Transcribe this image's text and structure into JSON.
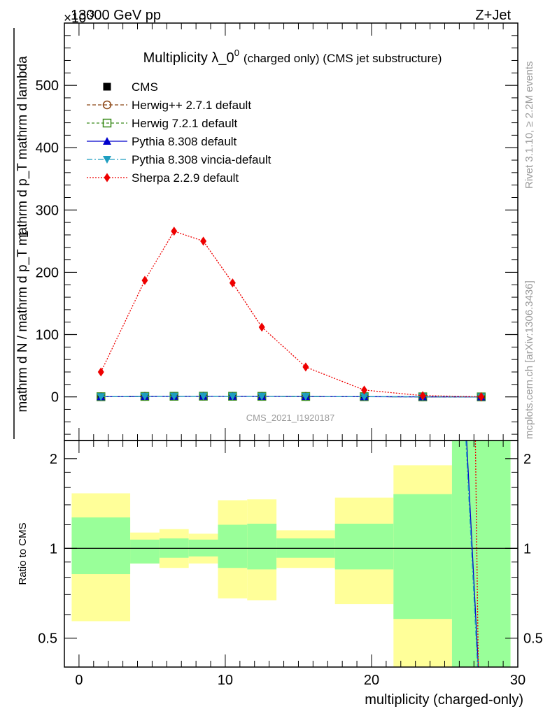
{
  "header": {
    "left": "13000 GeV pp",
    "right": "Z+Jet",
    "exponent": "×10",
    "exponent_power": "-3"
  },
  "side_labels": {
    "top": "Rivet 3.1.10, ≥ 2.2M events",
    "bottom": "mcplots.cern.ch [arXiv:1306.3436]"
  },
  "watermark": "CMS_2021_I1920187",
  "colors": {
    "cms": "#000000",
    "herwigpp": "#8b4513",
    "herwig7": "#3a8a1a",
    "pythia": "#0000cc",
    "vincia": "#1e9ec0",
    "sherpa": "#ee0000",
    "band_inner": "#99ff99",
    "band_outer": "#ffff99"
  },
  "chart_data": [
    {
      "type": "line",
      "title": "Multiplicity λ_0",
      "title_sup": "0",
      "title_suffix": "(charged only) (CMS jet substructure)",
      "ylabel_numerator": "1",
      "ylabel_numerator2": "mathrm dN",
      "ylabel_denominator": "mathrm d N / mathrm d p_T mathrm d p_T mathrm d lambda",
      "ylabel_denominator_display": "mathrm d N / mathrm d p",
      "ylabel_denominator_tail": "mathrm d lambda",
      "ylabel_sub": "T",
      "ylabel_mid": "mathrm d p",
      "ylabel_mid2": "mathrm d p",
      "ylim": [
        -70,
        600
      ],
      "xlim": [
        -1,
        30
      ],
      "yticks": [
        0,
        100,
        200,
        300,
        400,
        500
      ],
      "legend_placement": "top-left",
      "series": [
        {
          "name": "CMS",
          "key": "cms",
          "marker": "square-filled",
          "dash": "none",
          "x": [
            1.5,
            4.5,
            6.5,
            8.5,
            10.5,
            12.5,
            15.5,
            19.5,
            23.5,
            27.5
          ],
          "y": [
            0.3,
            0.8,
            1.0,
            1.1,
            1.0,
            0.9,
            0.7,
            0.35,
            0.1,
            0.02
          ]
        },
        {
          "name": "Herwig++ 2.7.1 default",
          "key": "herwigpp",
          "marker": "circle-open",
          "dash": "5,3",
          "x": [
            1.5,
            4.5,
            6.5,
            8.5,
            10.5,
            12.5,
            15.5,
            19.5,
            23.5,
            27.5
          ],
          "y": [
            0.3,
            0.8,
            1.0,
            1.1,
            1.0,
            0.9,
            0.7,
            0.35,
            0.1,
            0.02
          ]
        },
        {
          "name": "Herwig 7.2.1 default",
          "key": "herwig7",
          "marker": "square-open",
          "dash": "4,3",
          "x": [
            1.5,
            4.5,
            6.5,
            8.5,
            10.5,
            12.5,
            15.5,
            19.5,
            23.5,
            27.5
          ],
          "y": [
            0.3,
            0.8,
            1.0,
            1.1,
            1.0,
            0.9,
            0.7,
            0.35,
            0.1,
            0.02
          ]
        },
        {
          "name": "Pythia 8.308 default",
          "key": "pythia",
          "marker": "triangle-up",
          "dash": "none",
          "x": [
            1.5,
            4.5,
            6.5,
            8.5,
            10.5,
            12.5,
            15.5,
            19.5,
            23.5,
            27.5
          ],
          "y": [
            0.3,
            0.8,
            1.0,
            1.1,
            1.0,
            0.9,
            0.7,
            0.35,
            0.1,
            0.02
          ]
        },
        {
          "name": "Pythia 8.308 vincia-default",
          "key": "vincia",
          "marker": "triangle-down",
          "dash": "8,3,2,3",
          "x": [
            1.5,
            4.5,
            6.5,
            8.5,
            10.5,
            12.5,
            15.5,
            19.5,
            23.5,
            27.5
          ],
          "y": [
            0.3,
            0.8,
            1.0,
            1.1,
            1.0,
            0.9,
            0.7,
            0.35,
            0.1,
            0.02
          ]
        },
        {
          "name": "Sherpa 2.2.9 default",
          "key": "sherpa",
          "marker": "diamond",
          "dash": "2,2",
          "x": [
            1.5,
            4.5,
            6.5,
            8.5,
            10.5,
            12.5,
            15.5,
            19.5,
            23.5,
            27.5
          ],
          "y": [
            40,
            187,
            266,
            250,
            183,
            112,
            48,
            11,
            2,
            0.3
          ]
        }
      ]
    },
    {
      "type": "line",
      "ylabel": "Ratio to CMS",
      "xlabel": "multiplicity (charged-only)",
      "ylim": [
        0.4,
        2.3
      ],
      "xlim": [
        -1,
        30
      ],
      "log_y": true,
      "yticks": [
        0.5,
        1,
        2
      ],
      "xticks": [
        0,
        10,
        20,
        30
      ],
      "bands": [
        {
          "x0": -0.5,
          "x1": 3.5,
          "outer": [
            0.57,
            1.53
          ],
          "inner": [
            0.82,
            1.27
          ]
        },
        {
          "x0": 3.5,
          "x1": 5.5,
          "outer": [
            0.89,
            1.13
          ],
          "inner": [
            0.89,
            1.07
          ]
        },
        {
          "x0": 5.5,
          "x1": 7.5,
          "outer": [
            0.86,
            1.16
          ],
          "inner": [
            0.93,
            1.08
          ]
        },
        {
          "x0": 7.5,
          "x1": 9.5,
          "outer": [
            0.89,
            1.12
          ],
          "inner": [
            0.94,
            1.07
          ]
        },
        {
          "x0": 9.5,
          "x1": 11.5,
          "outer": [
            0.68,
            1.45
          ],
          "inner": [
            0.86,
            1.2
          ]
        },
        {
          "x0": 11.5,
          "x1": 13.5,
          "outer": [
            0.67,
            1.46
          ],
          "inner": [
            0.85,
            1.21
          ]
        },
        {
          "x0": 13.5,
          "x1": 17.5,
          "outer": [
            0.86,
            1.15
          ],
          "inner": [
            0.93,
            1.08
          ]
        },
        {
          "x0": 17.5,
          "x1": 21.5,
          "outer": [
            0.65,
            1.48
          ],
          "inner": [
            0.85,
            1.21
          ]
        },
        {
          "x0": 21.5,
          "x1": 25.5,
          "outer": [
            0.3,
            1.9
          ],
          "inner": [
            0.58,
            1.52
          ]
        },
        {
          "x0": 25.5,
          "x1": 29.5,
          "outer": [
            0.3,
            3.0
          ],
          "inner": [
            0.3,
            3.0
          ]
        }
      ],
      "ratio_lines": [
        {
          "key": "pythia",
          "x": [
            26.5,
            27.3
          ],
          "y": [
            2.5,
            0.4
          ]
        },
        {
          "key": "vincia",
          "x": [
            26.45,
            27.25
          ],
          "y": [
            2.5,
            0.4
          ]
        },
        {
          "key": "sherpa",
          "x": [
            27.1,
            27.3
          ],
          "y": [
            2.5,
            0.4
          ]
        }
      ],
      "reference_line": 1
    }
  ]
}
